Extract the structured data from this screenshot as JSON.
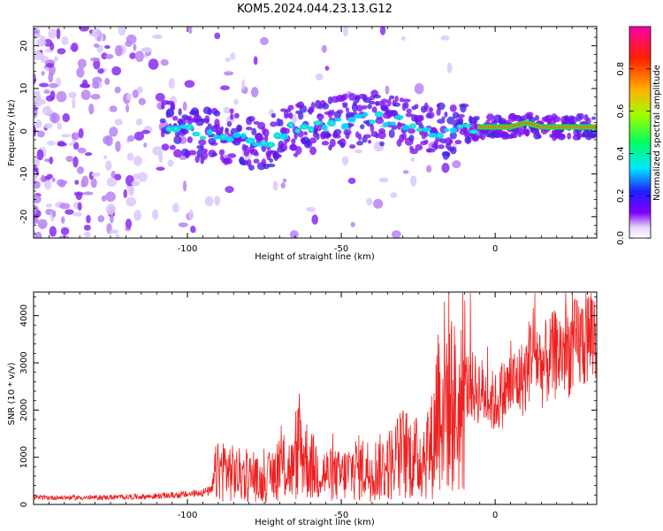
{
  "chart_data": [
    {
      "type": "heatmap",
      "title": "KOM5.2024.044.23.13.G12",
      "xlabel": "Height of straight line (km)",
      "ylabel": "Frequency (Hz)",
      "xlim": [
        -150,
        33
      ],
      "ylim": [
        -25,
        24.5
      ],
      "xticks": [
        -100,
        -50,
        0
      ],
      "yticks": [
        -20,
        -10,
        0,
        10,
        20
      ],
      "colorbar": {
        "label": "Normalized spectral amplitude",
        "range": [
          0,
          1
        ],
        "ticks": [
          0.0,
          0.2,
          0.4,
          0.6,
          0.8
        ]
      },
      "ridge_frequency_points": {
        "x": [
          -105,
          -95,
          -85,
          -75,
          -68,
          -60,
          -50,
          -40,
          -30,
          -20,
          -10,
          -5,
          0,
          5,
          10,
          15,
          20,
          33
        ],
        "y": [
          1,
          -1,
          -1,
          -4,
          0,
          1,
          2,
          3,
          2,
          0,
          0,
          1,
          1,
          1,
          2,
          1,
          1,
          1
        ]
      },
      "grid": false
    },
    {
      "type": "line",
      "xlabel": "Height of straight line (km)",
      "ylabel": "SNR (10 * v/v)",
      "xlim": [
        -150,
        33
      ],
      "ylim": [
        0,
        4500
      ],
      "xticks": [
        -100,
        -50,
        0
      ],
      "yticks": [
        0,
        1000,
        2000,
        3000,
        4000
      ],
      "series": [
        {
          "color": "#ee2020",
          "x": [
            -150,
            -130,
            -110,
            -100,
            -92,
            -91,
            -88,
            -85,
            -80,
            -75,
            -70,
            -65,
            -64,
            -60,
            -55,
            -50,
            -45,
            -40,
            -35,
            -30,
            -25,
            -20,
            -19,
            -15,
            -12,
            -10,
            -5,
            0,
            5,
            10,
            12,
            15,
            20,
            25,
            33
          ],
          "y": [
            150,
            150,
            180,
            220,
            300,
            700,
            850,
            700,
            650,
            500,
            900,
            800,
            1400,
            900,
            700,
            650,
            850,
            800,
            900,
            1200,
            1050,
            1400,
            2400,
            2600,
            2000,
            2600,
            2500,
            2200,
            2600,
            2800,
            3500,
            3000,
            3300,
            3400,
            3800
          ]
        }
      ],
      "grid": false
    }
  ]
}
